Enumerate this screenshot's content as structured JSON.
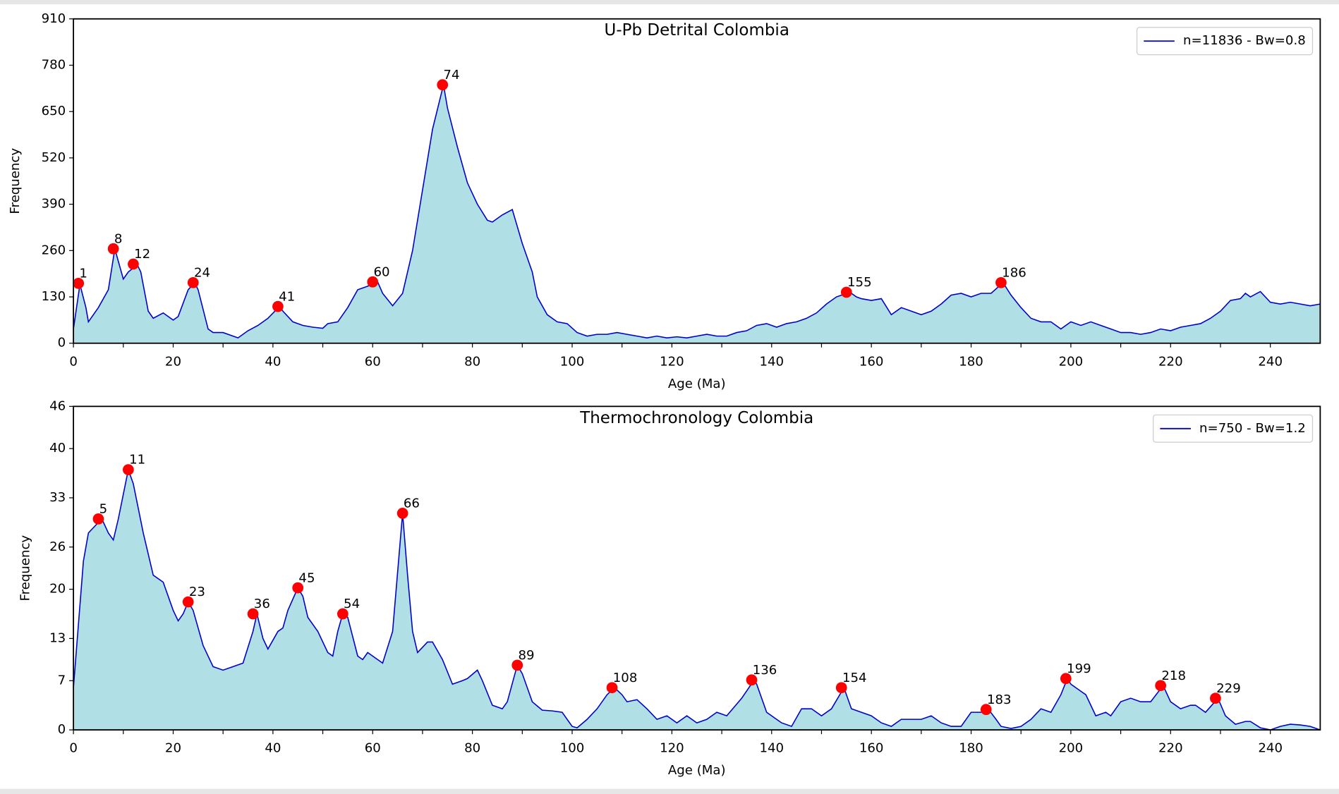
{
  "chart_data": [
    {
      "type": "area",
      "title": "U-Pb Detrital Colombia",
      "xlabel": "Age (Ma)",
      "ylabel": "Frequency",
      "x": [
        0,
        1.3,
        2.5,
        3,
        5,
        7,
        8.3,
        9,
        10,
        11,
        12.8,
        13.5,
        15,
        16,
        18,
        20,
        21,
        23,
        24.3,
        25,
        27,
        28,
        30,
        32,
        33,
        35,
        37,
        39,
        41.3,
        42,
        44,
        46,
        48,
        50,
        51,
        53,
        55,
        57,
        59,
        61,
        62,
        64,
        66,
        68,
        70,
        72,
        74.2,
        75,
        77,
        79,
        81,
        83,
        84,
        86,
        88,
        90,
        92,
        93,
        95,
        97,
        99,
        101,
        103,
        105,
        107,
        109,
        111,
        113,
        115,
        117,
        119,
        121,
        123,
        125,
        127,
        129,
        131,
        133,
        135,
        137,
        139,
        141,
        143,
        145,
        147,
        149,
        151,
        153,
        155.7,
        157,
        158,
        160,
        162,
        164,
        166,
        168,
        170,
        172,
        174,
        176,
        178,
        180,
        182,
        184,
        186.4,
        188,
        190,
        192,
        194,
        196,
        198,
        200,
        202,
        204,
        206,
        208,
        210,
        212,
        214,
        216,
        218,
        220,
        222,
        224,
        226,
        228,
        230,
        232,
        234,
        235,
        236,
        238,
        240,
        242,
        244,
        246,
        248,
        250
      ],
      "series": [
        {
          "name": "n=11836 - Bw=0.8",
          "color": "#0000cc",
          "fill": "#b0e0e6",
          "values": [
            40,
            165,
            100,
            60,
            100,
            150,
            265,
            230,
            180,
            200,
            220,
            200,
            90,
            70,
            85,
            65,
            75,
            150,
            170,
            150,
            40,
            30,
            30,
            20,
            15,
            35,
            50,
            70,
            103,
            90,
            60,
            50,
            45,
            42,
            55,
            60,
            100,
            150,
            160,
            172,
            140,
            105,
            140,
            260,
            430,
            600,
            725,
            660,
            550,
            450,
            390,
            345,
            340,
            360,
            375,
            280,
            200,
            130,
            80,
            60,
            55,
            30,
            20,
            25,
            25,
            30,
            25,
            20,
            15,
            20,
            15,
            18,
            15,
            20,
            25,
            20,
            20,
            30,
            35,
            50,
            55,
            45,
            55,
            60,
            70,
            85,
            110,
            130,
            143,
            130,
            125,
            120,
            125,
            80,
            100,
            90,
            80,
            90,
            110,
            135,
            140,
            130,
            140,
            140,
            170,
            135,
            100,
            70,
            60,
            60,
            40,
            60,
            50,
            60,
            50,
            40,
            30,
            30,
            25,
            30,
            40,
            35,
            45,
            50,
            55,
            70,
            90,
            120,
            125,
            140,
            130,
            145,
            115,
            110,
            115,
            110,
            105,
            110
          ]
        }
      ],
      "peaks": {
        "x": [
          1,
          8,
          12,
          24,
          41,
          60,
          74,
          155,
          186
        ],
        "values": [
          168,
          265,
          222,
          170,
          103,
          172,
          725,
          143,
          170
        ],
        "color": "#ff0000"
      },
      "xlim": [
        0,
        250
      ],
      "ylim": [
        0,
        910
      ],
      "xticks": [
        0,
        20,
        40,
        60,
        80,
        100,
        120,
        140,
        160,
        180,
        200,
        220,
        240
      ],
      "minor_xticks": [
        10,
        30,
        50,
        70,
        90,
        110,
        130,
        150,
        170,
        190,
        210,
        230
      ],
      "yticks": [
        0,
        130,
        260,
        390,
        520,
        650,
        780,
        910
      ],
      "legend": "upper right"
    },
    {
      "type": "area",
      "title": "Thermochronology Colombia",
      "xlabel": "Age (Ma)",
      "ylabel": "Frequency",
      "x": [
        0,
        1,
        2,
        3,
        5,
        5.7,
        7,
        8,
        9,
        11,
        12,
        14,
        16,
        18,
        20,
        21,
        22,
        23,
        24,
        26,
        28,
        30,
        32,
        34,
        36,
        36.8,
        38,
        39,
        41,
        42,
        43,
        45,
        46,
        47,
        49,
        51,
        52,
        53,
        54,
        55,
        57,
        58,
        59,
        60,
        61,
        62,
        64,
        66,
        67,
        68,
        69,
        71,
        72,
        74,
        76,
        78,
        79,
        81,
        82,
        84,
        86,
        87,
        89,
        90,
        92,
        94,
        96,
        98,
        99,
        100,
        101,
        103,
        105,
        107,
        108.5,
        110,
        111,
        113,
        115,
        117,
        119,
        121,
        123,
        125,
        127,
        129,
        131,
        134,
        136.5,
        137,
        139,
        141,
        142,
        144,
        146,
        148,
        150,
        152,
        154.5,
        155,
        156,
        158,
        160,
        162,
        164,
        166,
        168,
        170,
        172,
        174,
        176,
        178,
        180,
        182,
        183.5,
        185,
        186,
        188,
        190,
        192,
        194,
        196,
        198,
        199.3,
        200,
        202,
        203,
        205,
        207,
        208,
        210,
        212,
        214,
        216,
        218.5,
        220,
        222,
        224,
        225,
        227,
        229.5,
        231,
        233,
        235,
        236,
        238,
        240,
        242,
        244,
        246,
        248,
        250
      ],
      "series": [
        {
          "name": "n=750 - Bw=1.2",
          "color": "#0000cc",
          "fill": "#b0e0e6",
          "values": [
            6,
            15,
            24,
            28,
            29.5,
            30,
            28,
            27,
            30,
            37,
            35,
            28,
            22,
            21,
            17,
            15.5,
            16.5,
            18.2,
            17,
            12,
            9,
            8.5,
            9,
            9.5,
            14,
            16.5,
            13,
            11.5,
            14,
            14.5,
            17,
            20.2,
            19,
            16,
            14,
            11,
            10.5,
            14,
            16.5,
            16,
            10.5,
            10,
            11,
            10.5,
            10,
            9.5,
            14,
            30.8,
            22,
            14,
            11,
            12.5,
            12.5,
            10,
            6.5,
            7,
            7.3,
            8.5,
            7,
            3.5,
            3,
            4,
            9.2,
            8,
            4,
            2.8,
            2.7,
            2.5,
            1.5,
            0.5,
            0.3,
            1.5,
            3,
            5,
            6,
            5,
            4,
            4.3,
            3,
            1.5,
            2,
            1,
            2,
            1,
            1.5,
            2.5,
            2,
            4.5,
            7.1,
            6.5,
            2.5,
            1.5,
            1,
            0.5,
            3,
            3,
            2,
            3,
            6,
            5,
            3,
            2.5,
            2,
            1,
            0.5,
            1.5,
            1.5,
            1.5,
            2,
            1,
            0.5,
            0.5,
            2.5,
            2.5,
            2.9,
            1.5,
            0.5,
            0.2,
            0.5,
            1.5,
            3,
            2.5,
            5,
            7.3,
            6.5,
            5.5,
            5,
            2,
            2.5,
            2,
            4,
            4.5,
            4,
            4,
            6.3,
            4,
            3,
            3.5,
            3.5,
            2.5,
            4.5,
            2,
            0.8,
            1.2,
            1.2,
            0.3,
            0,
            0.5,
            0.8,
            0.7,
            0.5,
            0
          ]
        }
      ],
      "peaks": {
        "x": [
          5,
          11,
          23,
          36,
          45,
          54,
          66,
          89,
          108,
          136,
          154,
          183,
          199,
          218,
          229
        ],
        "values": [
          30,
          37,
          18.2,
          16.5,
          20.2,
          16.5,
          30.8,
          9.2,
          6,
          7.1,
          6,
          2.9,
          7.3,
          6.3,
          4.5
        ],
        "color": "#ff0000"
      },
      "xlim": [
        0,
        250
      ],
      "ylim": [
        0,
        46
      ],
      "xticks": [
        0,
        20,
        40,
        60,
        80,
        100,
        120,
        140,
        160,
        180,
        200,
        220,
        240
      ],
      "minor_xticks": [
        10,
        30,
        50,
        70,
        90,
        110,
        130,
        150,
        170,
        190,
        210,
        230
      ],
      "yticks": [
        0,
        7,
        13,
        20,
        26,
        33,
        40,
        46
      ],
      "legend": "upper right"
    }
  ]
}
